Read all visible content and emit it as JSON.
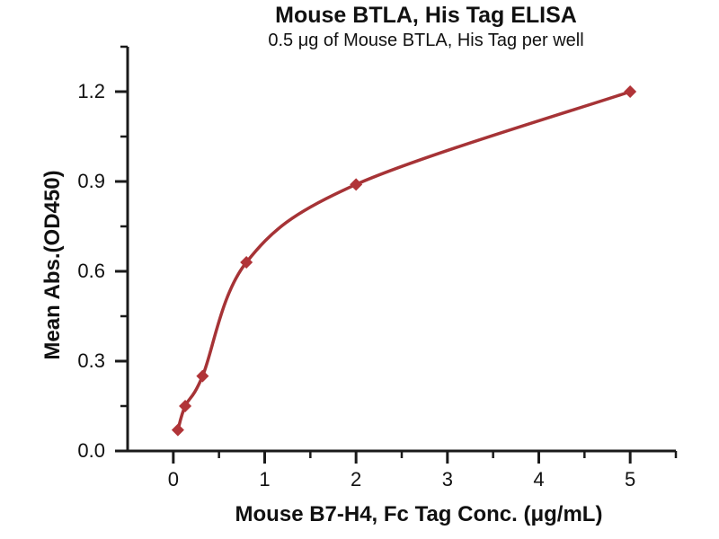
{
  "figure": {
    "title": "Mouse BTLA, His Tag ELISA",
    "subtitle": "0.5 μg of Mouse BTLA, His Tag per well"
  },
  "chart_data": {
    "type": "scatter",
    "title": "Mouse BTLA, His Tag ELISA",
    "subtitle": "0.5 μg of Mouse BTLA, His Tag per well",
    "xlabel": "Mouse B7-H4, Fc Tag Conc. (μg/mL)",
    "ylabel": "Mean Abs.(OD450)",
    "series": [
      {
        "x": [
          0.05,
          0.13,
          0.32,
          0.8,
          2,
          5
        ],
        "y": [
          0.07,
          0.15,
          0.25,
          0.63,
          0.89,
          1.2
        ],
        "marker": "diamond",
        "curve": "smooth-fit"
      }
    ],
    "xlim": [
      -0.5,
      5.5
    ],
    "ylim": [
      0,
      1.35
    ],
    "x_ticks": [
      0,
      1,
      2,
      3,
      4,
      5
    ],
    "x_tick_labels": [
      "0",
      "1",
      "2",
      "3",
      "4",
      "5"
    ],
    "y_ticks": [
      0.0,
      0.3,
      0.6,
      0.9,
      1.2
    ],
    "y_tick_labels": [
      "0.0",
      "0.3",
      "0.6",
      "0.9",
      "1.2"
    ],
    "x_minor_tick_step": 0.5,
    "y_minor_tick_step": 0.15,
    "grid": false,
    "legend": "none",
    "colors": {
      "line": "#a63336",
      "marker": "#b13438",
      "axis": "#1a1a1a",
      "text": "#111111",
      "background": "#ffffff"
    }
  }
}
